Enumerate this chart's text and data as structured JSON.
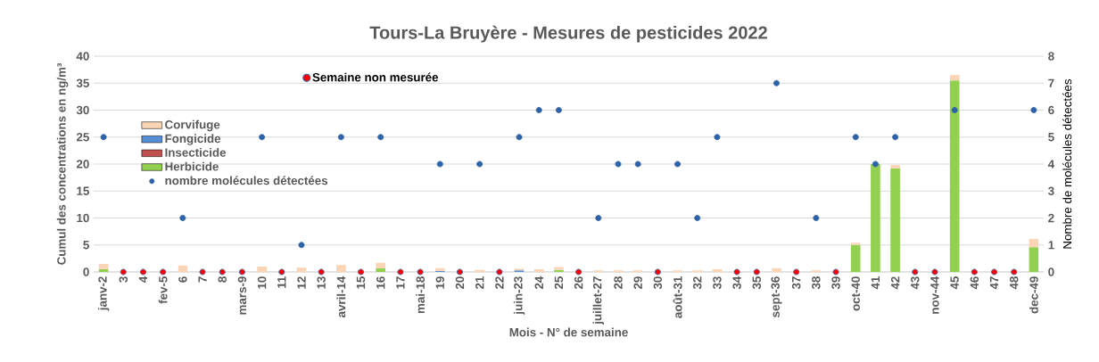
{
  "chart_data": {
    "type": "bar",
    "stacked": true,
    "title": "Tours-La Bruyère - Mesures de pesticides 2022",
    "xlabel": "Mois - N° de semaine",
    "ylabel": "Cumul des concentrations en ng/m³",
    "y2label": "Nombre de molécules détectées",
    "categories": [
      "janv-2",
      "3",
      "4",
      "fev-5",
      "6",
      "7",
      "8",
      "mars-9",
      "10",
      "11",
      "12",
      "13",
      "avril-14",
      "15",
      "16",
      "17",
      "mai-18",
      "19",
      "20",
      "21",
      "22",
      "juin-23",
      "24",
      "25",
      "26",
      "juillet-27",
      "28",
      "29",
      "30",
      "août-31",
      "32",
      "33",
      "34",
      "35",
      "sept-36",
      "37",
      "38",
      "39",
      "oct-40",
      "41",
      "42",
      "43",
      "nov-44",
      "45",
      "46",
      "47",
      "48",
      "dec-49"
    ],
    "series": [
      {
        "name": "Herbicide",
        "color": "#92d050",
        "values": [
          0.5,
          null,
          null,
          null,
          null,
          null,
          null,
          null,
          null,
          null,
          null,
          null,
          null,
          null,
          0.7,
          null,
          null,
          null,
          null,
          null,
          null,
          null,
          null,
          0.4,
          null,
          null,
          null,
          null,
          null,
          null,
          null,
          null,
          null,
          null,
          null,
          null,
          null,
          null,
          5,
          20,
          19.2,
          null,
          null,
          35.5,
          null,
          null,
          null,
          4.6
        ]
      },
      {
        "name": "Insecticide",
        "color": "#c0504d",
        "values": [
          null,
          null,
          null,
          null,
          null,
          null,
          null,
          null,
          null,
          null,
          null,
          null,
          null,
          null,
          null,
          null,
          null,
          null,
          null,
          null,
          null,
          null,
          null,
          null,
          null,
          null,
          null,
          null,
          null,
          null,
          null,
          null,
          null,
          null,
          null,
          null,
          null,
          null,
          null,
          null,
          null,
          null,
          null,
          null,
          null,
          null,
          null,
          null
        ]
      },
      {
        "name": "Fongicide",
        "color": "#558ed5",
        "values": [
          null,
          null,
          null,
          null,
          null,
          null,
          null,
          null,
          null,
          null,
          null,
          null,
          null,
          null,
          null,
          null,
          null,
          0.2,
          null,
          null,
          null,
          0.3,
          null,
          null,
          null,
          null,
          null,
          null,
          null,
          null,
          null,
          null,
          null,
          null,
          null,
          null,
          null,
          null,
          null,
          null,
          null,
          null,
          null,
          null,
          null,
          null,
          null,
          null
        ]
      },
      {
        "name": "Corvifuge",
        "color": "#fbd5b5",
        "values": [
          1.0,
          null,
          null,
          null,
          1.2,
          null,
          null,
          null,
          1.0,
          null,
          0.8,
          null,
          1.3,
          null,
          1.0,
          null,
          null,
          0.5,
          null,
          0.4,
          null,
          0.3,
          0.5,
          0.5,
          null,
          0.3,
          0.3,
          0.3,
          null,
          0.3,
          0.3,
          0.5,
          null,
          null,
          0.7,
          null,
          0.3,
          null,
          0.4,
          null,
          0.6,
          null,
          null,
          1.0,
          null,
          null,
          null,
          1.5
        ]
      },
      {
        "name": "nombre molécules détectées",
        "type": "scatter",
        "axis": "y2",
        "marker": "circle",
        "color": "#2e62a8",
        "values": [
          5,
          null,
          null,
          null,
          2,
          null,
          null,
          null,
          5,
          null,
          1,
          null,
          5,
          null,
          5,
          null,
          null,
          4,
          null,
          4,
          null,
          5,
          6,
          6,
          null,
          2,
          4,
          4,
          null,
          4,
          2,
          5,
          null,
          null,
          7,
          null,
          2,
          null,
          5,
          4,
          5,
          null,
          null,
          6,
          null,
          null,
          null,
          6
        ]
      },
      {
        "name": "Semaine non mesurée",
        "type": "scatter",
        "axis": "y2",
        "marker": "circle",
        "color": "#ff0000",
        "values": [
          null,
          0,
          0,
          0,
          null,
          0,
          0,
          0,
          null,
          0,
          null,
          0,
          null,
          0,
          null,
          0,
          0,
          null,
          0,
          null,
          0,
          null,
          null,
          null,
          0,
          null,
          null,
          null,
          0,
          null,
          null,
          null,
          0,
          0,
          null,
          0,
          null,
          0,
          null,
          null,
          null,
          0,
          0,
          null,
          0,
          0,
          0,
          null
        ]
      }
    ],
    "ylim": [
      0,
      40
    ],
    "yticks": [
      0,
      5,
      10,
      15,
      20,
      25,
      30,
      35,
      40
    ],
    "y2lim": [
      0,
      8
    ],
    "y2ticks": [
      0,
      1,
      2,
      3,
      4,
      5,
      6,
      7,
      8
    ],
    "grid": "y",
    "legend": "left"
  }
}
